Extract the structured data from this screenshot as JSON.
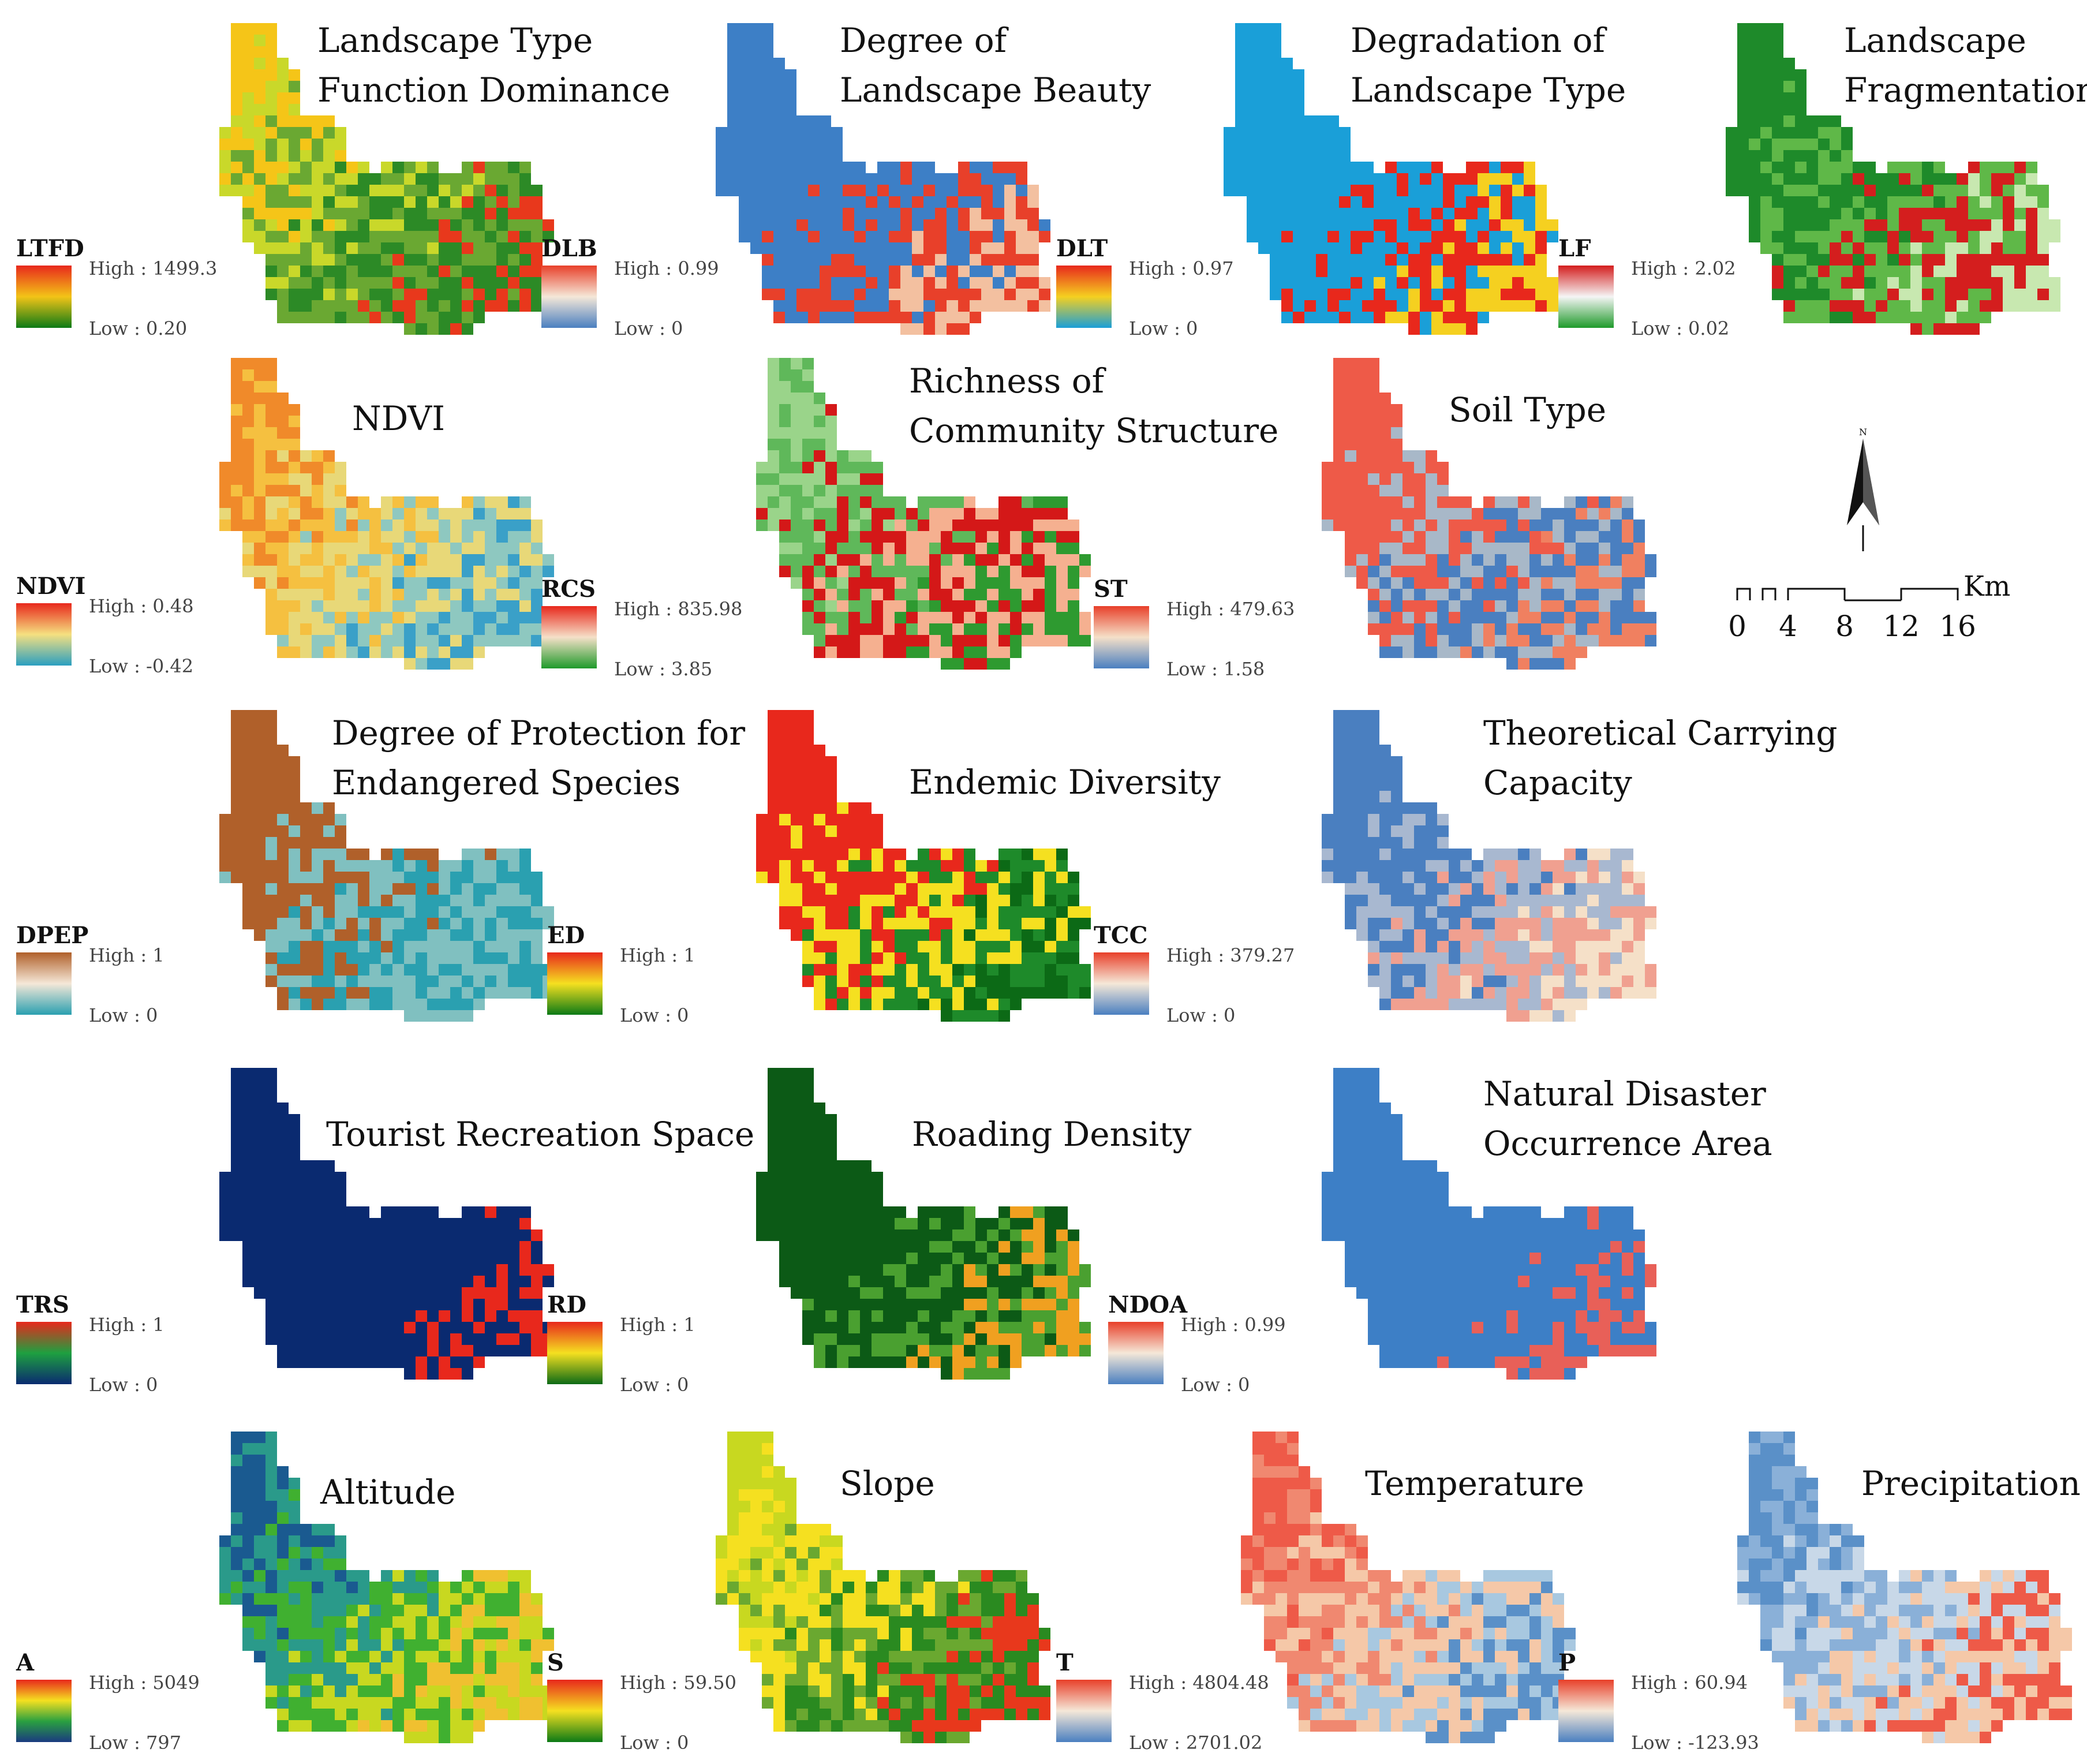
{
  "panels": [
    {
      "title": [
        "Landscape Type",
        "Function Dominance"
      ],
      "abbr": "LTFD",
      "high": "High : 1499.3",
      "low": "Low : 0.20",
      "ramp": [
        "#e8281c",
        "#f3c417",
        "#0c7a16"
      ],
      "map_colors": [
        "#f5c518",
        "#c9d82a",
        "#6aa832",
        "#2c8a26",
        "#e8381c"
      ]
    },
    {
      "title": [
        "Degree of",
        "Landscape Beauty"
      ],
      "abbr": "DLB",
      "high": "High : 0.99",
      "low": "Low : 0",
      "ramp": [
        "#e8402a",
        "#f5e8d8",
        "#4a7fc0"
      ],
      "map_colors": [
        "#3d7fc6",
        "#3d7fc6",
        "#3d7fc6",
        "#e8402a",
        "#f3c0a0"
      ]
    },
    {
      "title": [
        "Degradation of",
        "Landscape Type"
      ],
      "abbr": "DLT",
      "high": "High : 0.97",
      "low": "Low : 0",
      "ramp": [
        "#e8281c",
        "#f5d020",
        "#1a9fd8"
      ],
      "map_colors": [
        "#1a9fd8",
        "#1a9fd8",
        "#1a9fd8",
        "#e8281c",
        "#f5d020"
      ]
    },
    {
      "title": [
        "Landscape",
        "Fragmentation"
      ],
      "abbr": "LF",
      "high": "High : 2.02",
      "low": "Low : 0.02",
      "ramp": [
        "#d41e1e",
        "#f5f5f5",
        "#1e9a2a"
      ],
      "map_colors": [
        "#1e8a2a",
        "#1e8a2a",
        "#5fb848",
        "#d41e1e",
        "#c8e8b0"
      ]
    },
    {
      "title": [
        "NDVI"
      ],
      "abbr": "NDVI",
      "high": "High : 0.48",
      "low": "Low : -0.42",
      "ramp": [
        "#e8281c",
        "#f5e080",
        "#2a9fc0"
      ],
      "map_colors": [
        "#f08a2a",
        "#f5c040",
        "#e8d878",
        "#8ec8c0",
        "#3aa0c8"
      ]
    },
    {
      "title": [
        "Richness of",
        "Community Structure"
      ],
      "abbr": "RCS",
      "high": "High : 835.98",
      "low": "Low : 3.85",
      "ramp": [
        "#e8281c",
        "#f5e0c8",
        "#1e9a2a"
      ],
      "map_colors": [
        "#9ad48a",
        "#5fb85a",
        "#d41818",
        "#f5b090",
        "#2e9a30"
      ]
    },
    {
      "title": [
        "Soil Type"
      ],
      "abbr": "ST",
      "high": "High : 479.63",
      "low": "Low : 1.58",
      "ramp": [
        "#e8402a",
        "#f5e0c8",
        "#4a7fc0"
      ],
      "map_colors": [
        "#ee5a48",
        "#ee5a48",
        "#a8b8c8",
        "#4a7fc0",
        "#f08060"
      ]
    },
    {
      "title": [
        "Degree of Protection for",
        "Endangered Species"
      ],
      "abbr": "DPEP",
      "high": "High : 1",
      "low": "Low : 0",
      "ramp": [
        "#b0602a",
        "#f5e8d8",
        "#2aa0b0"
      ],
      "map_colors": [
        "#b0602a",
        "#b0602a",
        "#80c0c0",
        "#2aa0b0",
        "#80c0c0"
      ]
    },
    {
      "title": [
        "Endemic Diversity"
      ],
      "abbr": "ED",
      "high": "High : 1",
      "low": "Low : 0",
      "ramp": [
        "#e8281c",
        "#f5e020",
        "#0c7a16"
      ],
      "map_colors": [
        "#e8281c",
        "#e8281c",
        "#f5e020",
        "#1e8a2a",
        "#0c6a16"
      ]
    },
    {
      "title": [
        "Theoretical Carrying",
        "Capacity"
      ],
      "abbr": "TCC",
      "high": "High : 379.27",
      "low": "Low : 0",
      "ramp": [
        "#e8402a",
        "#f5e8d8",
        "#4a7fc0"
      ],
      "map_colors": [
        "#4a7fc0",
        "#4a7fc0",
        "#a8b8d0",
        "#f0a090",
        "#f5e0c8"
      ]
    },
    {
      "title": [
        "Tourist Recreation Space"
      ],
      "abbr": "TRS",
      "high": "High : 1",
      "low": "Low : 0",
      "ramp": [
        "#e8281c",
        "#1ea040",
        "#0a2a70"
      ],
      "map_colors": [
        "#0a2a70",
        "#0a2a70",
        "#0a2a70",
        "#0a2a70",
        "#e8281c"
      ]
    },
    {
      "title": [
        "Roading Density"
      ],
      "abbr": "RD",
      "high": "High : 1",
      "low": "Low : 0",
      "ramp": [
        "#e8281c",
        "#f5e020",
        "#0c6a16"
      ],
      "map_colors": [
        "#0c5a16",
        "#0c5a16",
        "#0c5a16",
        "#4aa030",
        "#f0a020"
      ]
    },
    {
      "title": [
        "Natural Disaster",
        "Occurrence Area"
      ],
      "abbr": "NDOA",
      "high": "High : 0.99",
      "low": "Low : 0",
      "ramp": [
        "#e8402a",
        "#f5e8d8",
        "#4a7fc0"
      ],
      "map_colors": [
        "#3d7fc6",
        "#3d7fc6",
        "#3d7fc6",
        "#3d7fc6",
        "#e86058"
      ]
    },
    {
      "title": [
        "Altitude"
      ],
      "abbr": "A",
      "high": "High : 5049",
      "low": "Low : 797",
      "ramp": [
        "#e8281c",
        "#f5e020",
        "#2aa040",
        "#1a3a80"
      ],
      "map_colors": [
        "#1a5a90",
        "#2a9a8a",
        "#40b030",
        "#c8d820",
        "#f0c030"
      ]
    },
    {
      "title": [
        "Slope"
      ],
      "abbr": "S",
      "high": "High : 59.50",
      "low": "Low : 0",
      "ramp": [
        "#e8281c",
        "#f5e020",
        "#0c7a16"
      ],
      "map_colors": [
        "#c8d820",
        "#f5e020",
        "#6aa830",
        "#2a8a20",
        "#e8381c"
      ]
    },
    {
      "title": [
        "Temperature"
      ],
      "abbr": "T",
      "high": "High : 4804.48",
      "low": "Low : 2701.02",
      "ramp": [
        "#e8402a",
        "#f5e8d8",
        "#4a7fc0"
      ],
      "map_colors": [
        "#ee5a48",
        "#f08870",
        "#f5c8a8",
        "#a8c8e0",
        "#5a90c8"
      ]
    },
    {
      "title": [
        "Precipitation"
      ],
      "abbr": "P",
      "high": "High : 60.94",
      "low": "Low : -123.93",
      "ramp": [
        "#e8402a",
        "#f5e8d8",
        "#4a7fc0"
      ],
      "map_colors": [
        "#5a90c8",
        "#8ab0d8",
        "#c8d8e8",
        "#f5c8a8",
        "#ee5a48"
      ]
    }
  ],
  "north_arrow": {
    "letter": "N"
  },
  "scale_bar": {
    "unit": "Km",
    "ticks": [
      "0",
      "4",
      "8",
      "12",
      "16"
    ]
  }
}
